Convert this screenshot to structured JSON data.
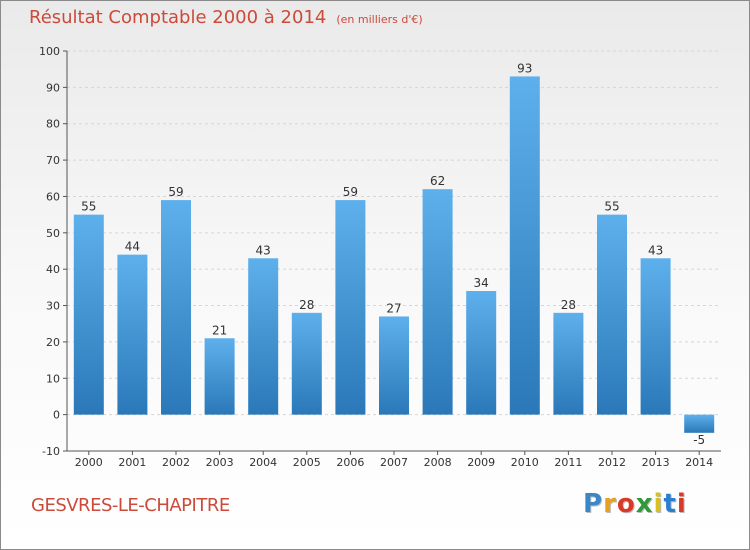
{
  "title": "Résultat Comptable 2000 à 2014",
  "unit": "(en milliers d'€)",
  "commune": "GESVRES-LE-CHAPITRE",
  "logo": {
    "letters": [
      "P",
      "r",
      "o",
      "x",
      "i",
      "t",
      "i"
    ],
    "colors": [
      "#3a87c8",
      "#e8a020",
      "#d83a2a",
      "#2f9a3a",
      "#d8c020",
      "#2b7fd0",
      "#d83a2a"
    ]
  },
  "colors": {
    "title": "#cc4a3a",
    "bar_light": "#5eb0ec",
    "bar_dark": "#2a78b8",
    "grid": "#d6d6d6"
  },
  "chart_data": {
    "type": "bar",
    "categories": [
      "2000",
      "2001",
      "2002",
      "2003",
      "2004",
      "2005",
      "2006",
      "2007",
      "2008",
      "2009",
      "2010",
      "2011",
      "2012",
      "2013",
      "2014"
    ],
    "values": [
      55,
      44,
      59,
      21,
      43,
      28,
      59,
      27,
      62,
      34,
      93,
      28,
      55,
      43,
      -5
    ],
    "data_labels": [
      "55",
      "44",
      "59",
      "21",
      "43",
      "28",
      "59",
      "27",
      "62",
      "34",
      "93",
      "28",
      "55",
      "43",
      "-5"
    ],
    "yticks": [
      -10,
      0,
      10,
      20,
      30,
      40,
      50,
      60,
      70,
      80,
      90,
      100
    ],
    "ylim": [
      -10,
      100
    ],
    "xlabel": "",
    "ylabel": "",
    "grid": true,
    "legend": "none"
  }
}
